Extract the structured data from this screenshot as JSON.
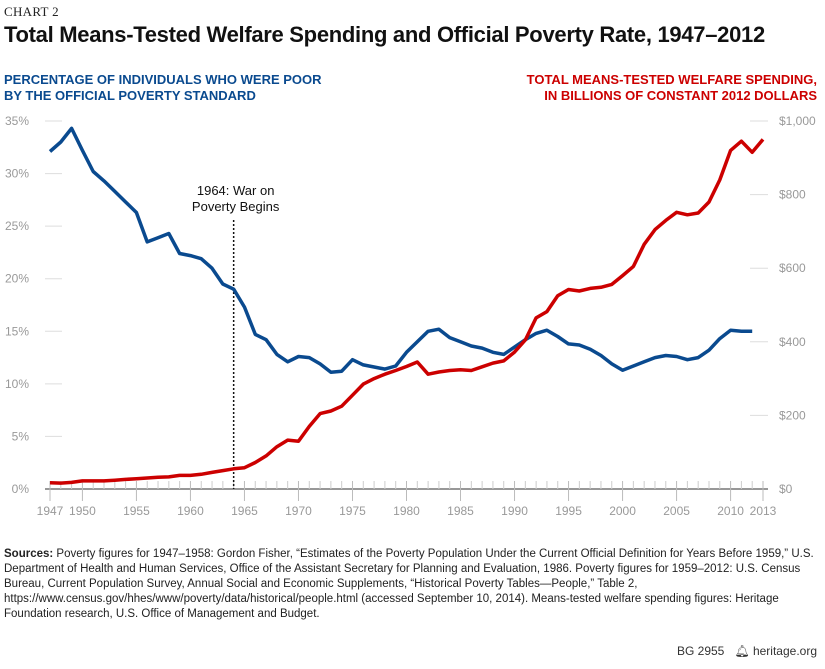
{
  "chart_label": "CHART 2",
  "chart_data": {
    "type": "line",
    "title": "Total Means-Tested Welfare Spending and Official Poverty Rate, 1947–2012",
    "left_axis_label": [
      "PERCENTAGE OF INDIVIDUALS WHO WERE POOR",
      "BY THE OFFICIAL POVERTY STANDARD"
    ],
    "right_axis_label": [
      "TOTAL MEANS-TESTED WELFARE SPENDING,",
      "IN BILLIONS OF CONSTANT 2012 DOLLARS"
    ],
    "xlim": [
      1947,
      2013
    ],
    "x_ticks": [
      "1947",
      "1950",
      "1955",
      "1960",
      "1965",
      "1970",
      "1975",
      "1980",
      "1985",
      "1990",
      "1995",
      "2000",
      "2005",
      "2010",
      "2013"
    ],
    "left_ylim": [
      0,
      35
    ],
    "left_ticks": [
      "0%",
      "5%",
      "10%",
      "15%",
      "20%",
      "25%",
      "30%",
      "35%"
    ],
    "right_ylim": [
      0,
      1000
    ],
    "right_ticks": [
      "$0",
      "$200",
      "$400",
      "$600",
      "$800",
      "$1,000"
    ],
    "grid": false,
    "annotation": {
      "year": 1964,
      "lines": [
        "1964: War on",
        "Poverty Begins"
      ]
    },
    "series": [
      {
        "axis": "left",
        "color": "#0a4a8f",
        "start_year": 1947,
        "values": [
          32.1,
          33.0,
          34.3,
          32.2,
          30.2,
          29.3,
          28.3,
          27.3,
          26.3,
          23.5,
          23.9,
          24.3,
          22.4,
          22.2,
          21.9,
          21.0,
          19.5,
          19.0,
          17.3,
          14.7,
          14.2,
          12.8,
          12.1,
          12.6,
          12.5,
          11.9,
          11.1,
          11.2,
          12.3,
          11.8,
          11.6,
          11.4,
          11.7,
          13.0,
          14.0,
          15.0,
          15.2,
          14.4,
          14.0,
          13.6,
          13.4,
          13.0,
          12.8,
          13.5,
          14.2,
          14.8,
          15.1,
          14.5,
          13.8,
          13.7,
          13.3,
          12.7,
          11.9,
          11.3,
          11.7,
          12.1,
          12.5,
          12.7,
          12.6,
          12.3,
          12.5,
          13.2,
          14.3,
          15.1,
          15.0,
          15.0
        ]
      },
      {
        "axis": "right",
        "color": "#cc0000",
        "start_year": 1947,
        "values": [
          17,
          16,
          18,
          22,
          22,
          22,
          24,
          26,
          28,
          30,
          32,
          33,
          37,
          37,
          40,
          45,
          50,
          55,
          58,
          72,
          90,
          115,
          133,
          130,
          170,
          205,
          212,
          225,
          255,
          285,
          300,
          312,
          322,
          333,
          345,
          312,
          318,
          322,
          324,
          322,
          332,
          342,
          348,
          372,
          405,
          465,
          482,
          525,
          542,
          538,
          545,
          548,
          556,
          580,
          605,
          665,
          705,
          730,
          752,
          745,
          750,
          780,
          840,
          920,
          945,
          915,
          950
        ]
      }
    ]
  },
  "sources": {
    "label": "Sources:",
    "text": "Poverty figures for 1947–1958: Gordon Fisher, “Estimates of the Poverty Population Under the Current Official Definition for Years Before 1959,” U.S. Department of Health and Human Services, Office of the Assistant Secretary for Planning and Evaluation, 1986. Poverty figures for 1959–2012: U.S. Census Bureau, Current Population Survey, Annual Social and Economic Supplements, “Historical Poverty Tables—People,” Table 2, https://www.census.gov/hhes/www/poverty/data/historical/people.html (accessed September 10, 2014). Means-tested welfare spending figures: Heritage Foundation research, U.S. Office of Management and Budget."
  },
  "footer": {
    "report": "BG 2955",
    "site": "heritage.org",
    "icon": "bell-icon"
  }
}
